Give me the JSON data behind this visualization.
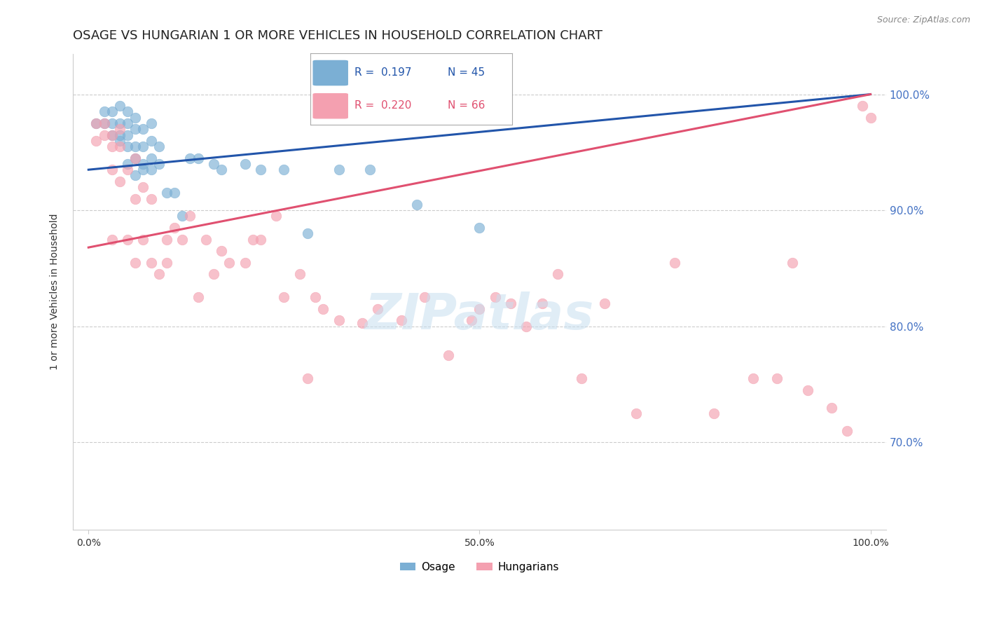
{
  "title": "OSAGE VS HUNGARIAN 1 OR MORE VEHICLES IN HOUSEHOLD CORRELATION CHART",
  "source": "Source: ZipAtlas.com",
  "ylabel": "1 or more Vehicles in Household",
  "xlim": [
    -0.02,
    1.02
  ],
  "ylim": [
    0.625,
    1.035
  ],
  "ytick_vals": [
    0.7,
    0.8,
    0.9,
    1.0
  ],
  "ytick_labels": [
    "70.0%",
    "80.0%",
    "90.0%",
    "100.0%"
  ],
  "xtick_vals": [
    0.0,
    0.5,
    1.0
  ],
  "xtick_labels": [
    "0.0%",
    "50.0%",
    "100.0%"
  ],
  "legend_r_osage": "R =  0.197",
  "legend_n_osage": "N = 45",
  "legend_r_hung": "R =  0.220",
  "legend_n_hung": "N = 66",
  "osage_color": "#7bafd4",
  "hung_color": "#f4a0b0",
  "trend_osage_color": "#2255aa",
  "trend_hung_color": "#e05070",
  "background_color": "#ffffff",
  "grid_color": "#cccccc",
  "title_fontsize": 13,
  "label_fontsize": 10,
  "tick_fontsize": 10,
  "marker_size": 110,
  "osage_x": [
    0.01,
    0.02,
    0.02,
    0.03,
    0.03,
    0.03,
    0.04,
    0.04,
    0.04,
    0.04,
    0.05,
    0.05,
    0.05,
    0.05,
    0.05,
    0.06,
    0.06,
    0.06,
    0.06,
    0.06,
    0.07,
    0.07,
    0.07,
    0.07,
    0.08,
    0.08,
    0.08,
    0.08,
    0.09,
    0.09,
    0.1,
    0.11,
    0.12,
    0.13,
    0.14,
    0.16,
    0.17,
    0.2,
    0.22,
    0.25,
    0.28,
    0.32,
    0.36,
    0.42,
    0.5
  ],
  "osage_y": [
    0.975,
    0.975,
    0.985,
    0.965,
    0.975,
    0.985,
    0.96,
    0.965,
    0.975,
    0.99,
    0.94,
    0.955,
    0.965,
    0.975,
    0.985,
    0.93,
    0.945,
    0.955,
    0.97,
    0.98,
    0.935,
    0.94,
    0.955,
    0.97,
    0.935,
    0.945,
    0.96,
    0.975,
    0.94,
    0.955,
    0.915,
    0.915,
    0.895,
    0.945,
    0.945,
    0.94,
    0.935,
    0.94,
    0.935,
    0.935,
    0.88,
    0.935,
    0.935,
    0.905,
    0.885
  ],
  "hung_x": [
    0.01,
    0.01,
    0.02,
    0.02,
    0.03,
    0.03,
    0.03,
    0.03,
    0.04,
    0.04,
    0.04,
    0.05,
    0.05,
    0.06,
    0.06,
    0.06,
    0.07,
    0.07,
    0.08,
    0.08,
    0.09,
    0.1,
    0.1,
    0.11,
    0.12,
    0.13,
    0.14,
    0.15,
    0.16,
    0.17,
    0.18,
    0.2,
    0.21,
    0.22,
    0.24,
    0.25,
    0.27,
    0.28,
    0.29,
    0.3,
    0.32,
    0.35,
    0.37,
    0.4,
    0.43,
    0.46,
    0.49,
    0.5,
    0.52,
    0.54,
    0.56,
    0.58,
    0.6,
    0.63,
    0.66,
    0.7,
    0.75,
    0.8,
    0.85,
    0.88,
    0.9,
    0.92,
    0.95,
    0.97,
    0.99,
    1.0
  ],
  "hung_y": [
    0.96,
    0.975,
    0.965,
    0.975,
    0.875,
    0.935,
    0.955,
    0.965,
    0.925,
    0.955,
    0.97,
    0.875,
    0.935,
    0.855,
    0.91,
    0.945,
    0.875,
    0.92,
    0.855,
    0.91,
    0.845,
    0.855,
    0.875,
    0.885,
    0.875,
    0.895,
    0.825,
    0.875,
    0.845,
    0.865,
    0.855,
    0.855,
    0.875,
    0.875,
    0.895,
    0.825,
    0.845,
    0.755,
    0.825,
    0.815,
    0.805,
    0.803,
    0.815,
    0.805,
    0.825,
    0.775,
    0.805,
    0.815,
    0.825,
    0.82,
    0.8,
    0.82,
    0.845,
    0.755,
    0.82,
    0.725,
    0.855,
    0.725,
    0.755,
    0.755,
    0.855,
    0.745,
    0.73,
    0.71,
    0.99,
    0.98
  ]
}
